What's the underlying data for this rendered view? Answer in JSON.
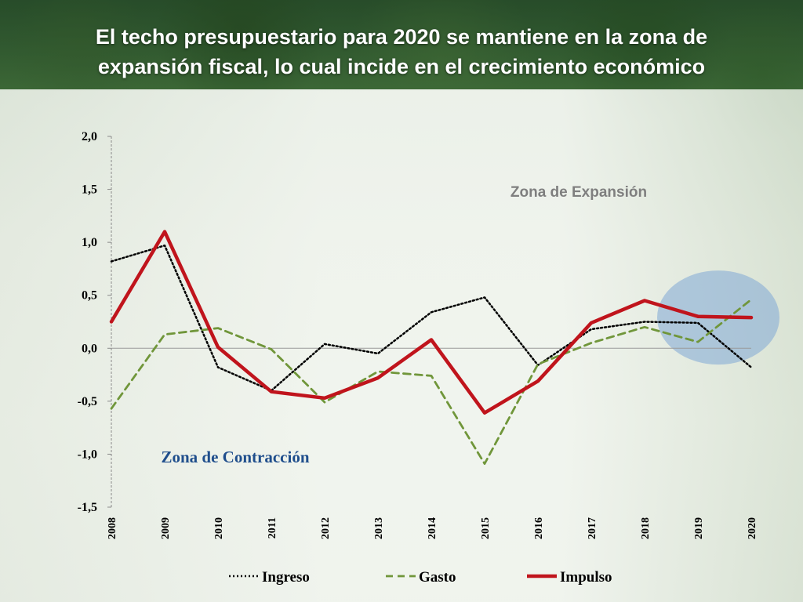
{
  "title": {
    "line1": "El techo presupuestario para 2020 se  mantiene en la zona de",
    "line2": "expansión fiscal, lo cual incide en el crecimiento económico"
  },
  "annotations": {
    "expansion": "Zona de Expansión",
    "contraction": "Zona de Contracción"
  },
  "chart_data": {
    "type": "line",
    "title": "El techo presupuestario para 2020 se  mantiene en la zona de expansión fiscal, lo cual incide en el crecimiento económico",
    "xlabel": "",
    "ylabel": "",
    "categories": [
      "2008",
      "2009",
      "2010",
      "2011",
      "2012",
      "2013",
      "2014",
      "2015",
      "2016",
      "2017",
      "2018",
      "2019",
      "2020"
    ],
    "ylim": [
      -1.5,
      2.0
    ],
    "yticks": [
      2.0,
      1.5,
      1.0,
      0.5,
      0.0,
      -0.5,
      -1.0,
      -1.5
    ],
    "ytick_labels": [
      "2,0",
      "1,5",
      "1,0",
      "0,5",
      "0,0",
      "-0,5",
      "-1,0",
      "-1,5"
    ],
    "grid": false,
    "legend_position": "bottom",
    "series": [
      {
        "name": "Ingreso",
        "color": "#000000",
        "style": "dotted",
        "values": [
          0.82,
          0.97,
          -0.18,
          -0.4,
          0.04,
          -0.05,
          0.34,
          0.48,
          -0.16,
          0.18,
          0.25,
          0.24,
          -0.18
        ]
      },
      {
        "name": "Gasto",
        "color": "#70963a",
        "style": "dashed",
        "values": [
          -0.57,
          0.13,
          0.19,
          -0.01,
          -0.51,
          -0.22,
          -0.26,
          -1.09,
          -0.15,
          0.05,
          0.2,
          0.06,
          0.46
        ]
      },
      {
        "name": "Impulso",
        "color": "#c0141c",
        "style": "solid",
        "values": [
          0.25,
          1.1,
          0.01,
          -0.41,
          -0.47,
          -0.28,
          0.08,
          -0.61,
          -0.31,
          0.24,
          0.45,
          0.3,
          0.29
        ]
      }
    ],
    "highlight": {
      "center_x": "2019",
      "center_y": 0.29,
      "color": "#7fa7d6"
    }
  }
}
